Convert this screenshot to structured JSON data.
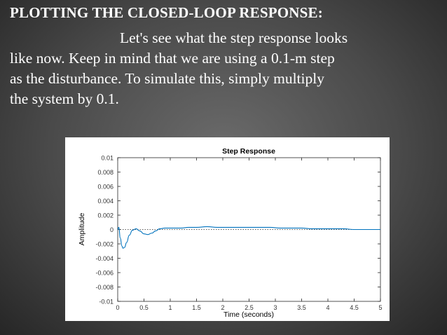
{
  "slide": {
    "title": "PLOTTING THE CLOSED-LOOP RESPONSE:",
    "body_lines": [
      "Let's see what the step response looks",
      "like now. Keep in mind that we are using a 0.1-m step",
      "as the disturbance. To simulate this, simply multiply",
      "the system by 0.1."
    ]
  },
  "colors": {
    "line": "#0072bd",
    "axis": "#262626",
    "zero_line": "#262626",
    "background": "#ffffff"
  },
  "chart_data": {
    "type": "line",
    "title": "Step Response",
    "xlabel": "Time (seconds)",
    "ylabel": "Amplitude",
    "xlim": [
      0,
      5
    ],
    "ylim": [
      -0.01,
      0.01
    ],
    "xticks": [
      0,
      0.5,
      1,
      1.5,
      2,
      2.5,
      3,
      3.5,
      4,
      4.5,
      5
    ],
    "xtick_labels": [
      "0",
      "0.5",
      "1",
      "1.5",
      "2",
      "2.5",
      "3",
      "3.5",
      "4",
      "4.5",
      "5"
    ],
    "yticks": [
      0.01,
      0.008,
      0.006,
      0.004,
      0.002,
      0,
      -0.002,
      -0.004,
      -0.006,
      -0.008,
      -0.01
    ],
    "ytick_labels": [
      "0.01",
      "0.008",
      "0.006",
      "0.004",
      "0.002",
      "0",
      "-0.002",
      "-0.004",
      "-0.006",
      "-0.008",
      "-0.01"
    ],
    "reference_line": {
      "y": 0,
      "style": "dotted"
    },
    "grid": false,
    "series": [
      {
        "x": [
          0,
          0.02,
          0.05,
          0.08,
          0.1,
          0.13,
          0.17,
          0.22,
          0.28,
          0.35,
          0.42,
          0.5,
          0.57,
          0.65,
          0.72,
          0.8,
          0.9,
          1.0,
          1.1,
          1.2,
          1.35,
          1.5,
          1.7,
          1.9,
          2.1,
          2.3,
          2.5,
          2.7,
          2.9,
          3.1,
          3.3,
          3.5,
          3.7,
          3.9,
          4.1,
          4.3,
          4.5,
          4.75,
          5.0
        ],
        "y": [
          0.0,
          0.0003,
          -0.0012,
          -0.0023,
          -0.0026,
          -0.0025,
          -0.0018,
          -0.0008,
          -0.0001,
          0.0001,
          -0.0002,
          -0.0006,
          -0.0007,
          -0.0005,
          -0.0002,
          0.0001,
          0.0002,
          0.0002,
          0.0002,
          0.0002,
          0.0003,
          0.0003,
          0.0004,
          0.0003,
          0.0003,
          0.0003,
          0.0003,
          0.0003,
          0.0003,
          0.0002,
          0.0002,
          0.0002,
          0.0001,
          0.0001,
          0.0001,
          0.0001,
          0.0,
          0.0,
          0.0
        ]
      }
    ]
  }
}
